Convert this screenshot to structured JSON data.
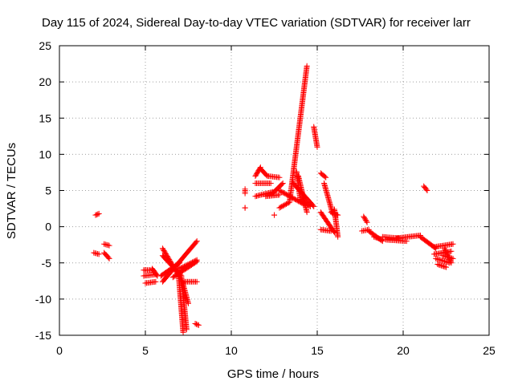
{
  "chart_data": {
    "type": "scatter",
    "title": "Day 115 of 2024, Sidereal Day-to-day VTEC variation (SDTVAR) for receiver larr",
    "xlabel": "GPS time / hours",
    "ylabel": "SDTVAR / TECUs",
    "xlim": [
      0,
      25
    ],
    "ylim": [
      -15,
      25
    ],
    "xticks": [
      "0",
      "5",
      "10",
      "15",
      "20",
      "25"
    ],
    "yticks": [
      "25",
      "20",
      "15",
      "10",
      "5",
      "0",
      "-5",
      "-10",
      "-15"
    ],
    "grid": true,
    "marker": "plus",
    "color": "#ff0000",
    "series": [
      {
        "name": "SDTVAR",
        "x": [],
        "y": []
      }
    ],
    "segments": [
      [
        2.1,
        1.6,
        2.3,
        1.8
      ],
      [
        2.0,
        -3.6,
        2.3,
        -3.8
      ],
      [
        2.6,
        -2.4,
        2.9,
        -2.6
      ],
      [
        2.6,
        -3.6,
        2.9,
        -4.4
      ],
      [
        4.9,
        -6.0,
        5.4,
        -6.0
      ],
      [
        4.9,
        -6.8,
        5.6,
        -6.6
      ],
      [
        5.0,
        -7.8,
        5.6,
        -7.6
      ],
      [
        5.4,
        -5.8,
        5.7,
        -6.8
      ],
      [
        6.0,
        -7.6,
        8.0,
        -2.0
      ],
      [
        5.9,
        -6.8,
        7.0,
        -5.0
      ],
      [
        6.0,
        -3.0,
        7.2,
        -7.8
      ],
      [
        6.0,
        -4.0,
        7.1,
        -6.8
      ],
      [
        6.6,
        -7.0,
        8.0,
        -4.8
      ],
      [
        7.0,
        -5.8,
        8.0,
        -4.6
      ],
      [
        7.3,
        -7.6,
        8.0,
        -7.6
      ],
      [
        6.9,
        -5.6,
        7.2,
        -14.6
      ],
      [
        7.1,
        -7.0,
        7.4,
        -14.2
      ],
      [
        7.2,
        -8.0,
        7.5,
        -10.6
      ],
      [
        7.9,
        -13.4,
        8.1,
        -13.6
      ],
      [
        10.8,
        5.2,
        10.8,
        4.6
      ],
      [
        10.8,
        2.6,
        10.8,
        2.6
      ],
      [
        11.4,
        7.0,
        11.7,
        8.2
      ],
      [
        11.7,
        8.0,
        12.1,
        7.0
      ],
      [
        12.1,
        7.0,
        12.8,
        6.8
      ],
      [
        11.4,
        6.0,
        12.3,
        6.0
      ],
      [
        11.4,
        4.2,
        12.4,
        4.8
      ],
      [
        12.4,
        4.6,
        13.0,
        6.0
      ],
      [
        12.0,
        4.2,
        12.8,
        4.4
      ],
      [
        12.5,
        1.6,
        12.5,
        1.6
      ],
      [
        12.8,
        2.6,
        13.4,
        3.4
      ],
      [
        13.4,
        3.6,
        14.4,
        22.2
      ],
      [
        12.8,
        5.0,
        14.3,
        3.0
      ],
      [
        13.6,
        6.0,
        14.8,
        2.8
      ],
      [
        13.8,
        7.6,
        14.0,
        4.0
      ],
      [
        13.9,
        7.0,
        14.4,
        2.0
      ],
      [
        14.0,
        3.8,
        14.6,
        2.8
      ],
      [
        14.8,
        13.8,
        15.0,
        11.0
      ],
      [
        15.2,
        7.4,
        15.5,
        6.8
      ],
      [
        15.4,
        6.0,
        15.9,
        1.8
      ],
      [
        15.2,
        2.0,
        16.0,
        -0.8
      ],
      [
        15.2,
        -0.4,
        15.8,
        -0.6
      ],
      [
        15.8,
        2.0,
        16.2,
        1.6
      ],
      [
        16.0,
        2.4,
        16.2,
        -1.4
      ],
      [
        17.7,
        1.4,
        17.9,
        0.6
      ],
      [
        17.6,
        -0.6,
        18.0,
        -0.4
      ],
      [
        18.0,
        -0.6,
        18.8,
        -2.0
      ],
      [
        18.3,
        -1.4,
        18.8,
        -1.8
      ],
      [
        18.8,
        -1.4,
        19.8,
        -1.6
      ],
      [
        19.6,
        -1.6,
        21.0,
        -1.2
      ],
      [
        19.0,
        -1.8,
        20.2,
        -2.0
      ],
      [
        21.0,
        -1.4,
        21.9,
        -3.0
      ],
      [
        21.2,
        5.6,
        21.4,
        5.0
      ],
      [
        21.8,
        -2.8,
        22.9,
        -2.4
      ],
      [
        21.8,
        -3.8,
        22.8,
        -3.4
      ],
      [
        21.9,
        -4.4,
        22.7,
        -5.0
      ],
      [
        22.0,
        -5.2,
        22.5,
        -5.6
      ],
      [
        22.3,
        -4.0,
        22.9,
        -4.4
      ],
      [
        22.4,
        -3.0,
        22.8,
        -5.0
      ]
    ]
  }
}
